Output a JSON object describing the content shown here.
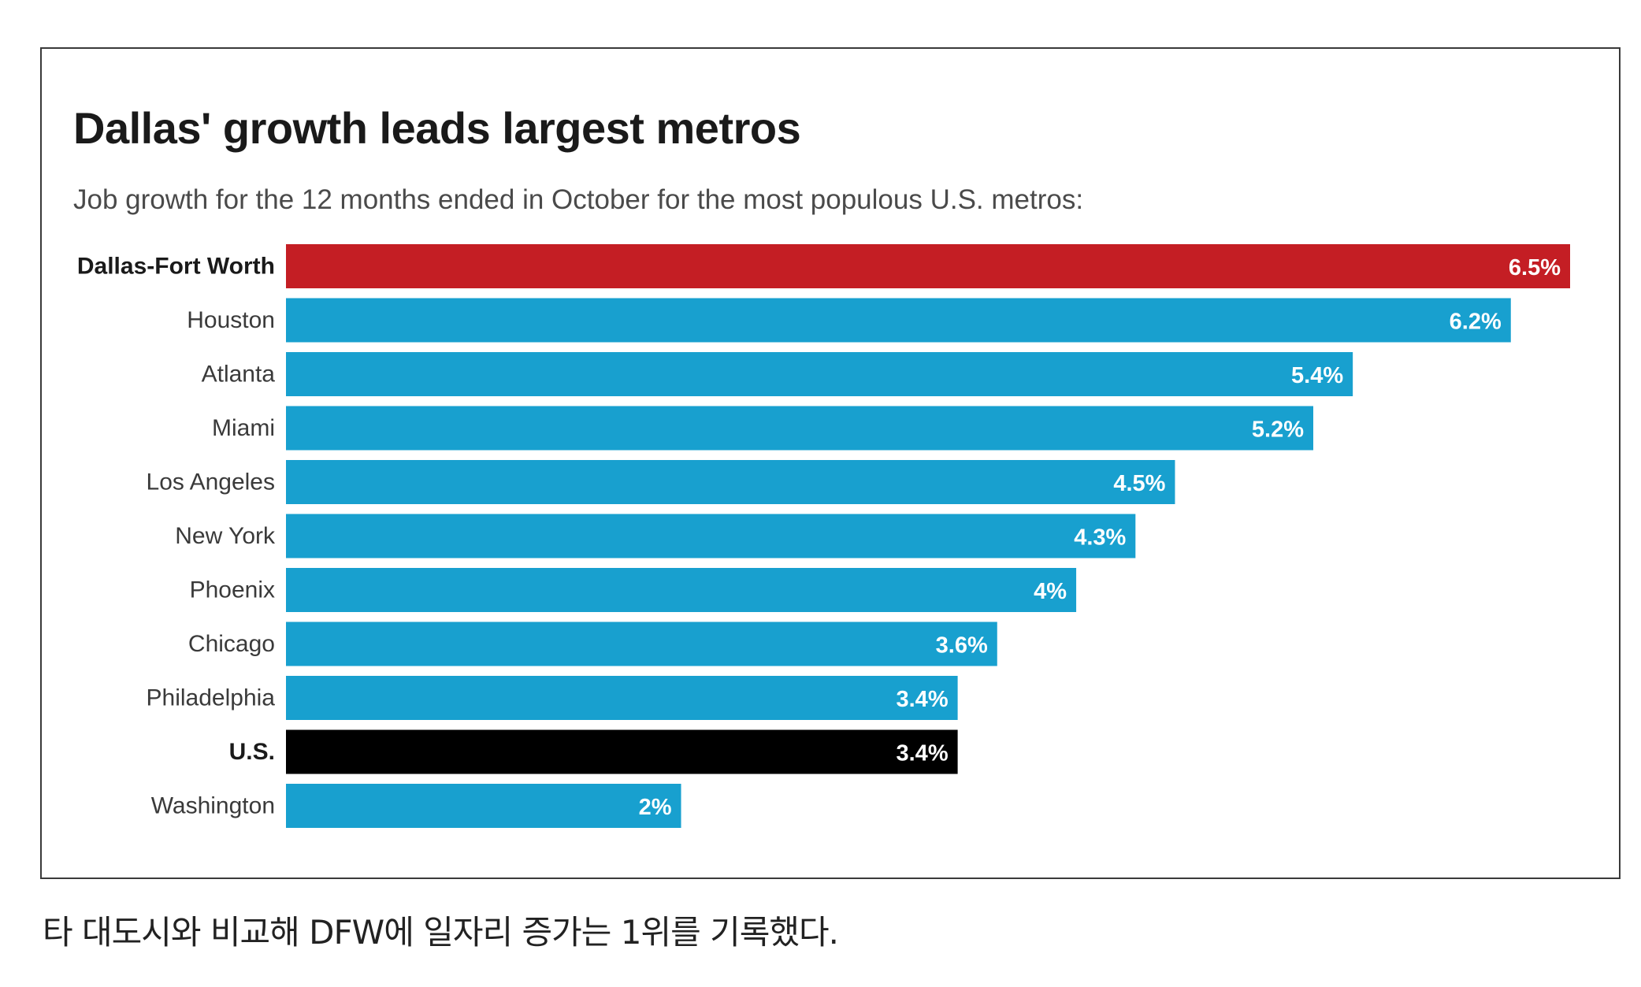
{
  "chart_data": {
    "type": "bar",
    "orientation": "horizontal",
    "title": "Dallas' growth leads largest metros",
    "subtitle": "Job growth for the 12 months ended in October for the most populous U.S. metros:",
    "categories": [
      "Dallas-Fort Worth",
      "Houston",
      "Atlanta",
      "Miami",
      "Los Angeles",
      "New York",
      "Phoenix",
      "Chicago",
      "Philadelphia",
      "U.S.",
      "Washington"
    ],
    "values": [
      6.5,
      6.2,
      5.4,
      5.2,
      4.5,
      4.3,
      4,
      3.6,
      3.4,
      3.4,
      2
    ],
    "value_labels": [
      "6.5%",
      "6.2%",
      "5.4%",
      "5.2%",
      "4.5%",
      "4.3%",
      "4%",
      "3.6%",
      "3.4%",
      "3.4%",
      "2%"
    ],
    "bold_categories": [
      "Dallas-Fort Worth",
      "U.S."
    ],
    "bar_colors": [
      "#c41e24",
      "#18a0cf",
      "#18a0cf",
      "#18a0cf",
      "#18a0cf",
      "#18a0cf",
      "#18a0cf",
      "#18a0cf",
      "#18a0cf",
      "#000000",
      "#18a0cf"
    ],
    "xlim": [
      0,
      6.5
    ],
    "grid": false,
    "legend": "none"
  },
  "caption": "타 대도시와 비교해 DFW에 일자리 증가는 1위를 기록했다."
}
